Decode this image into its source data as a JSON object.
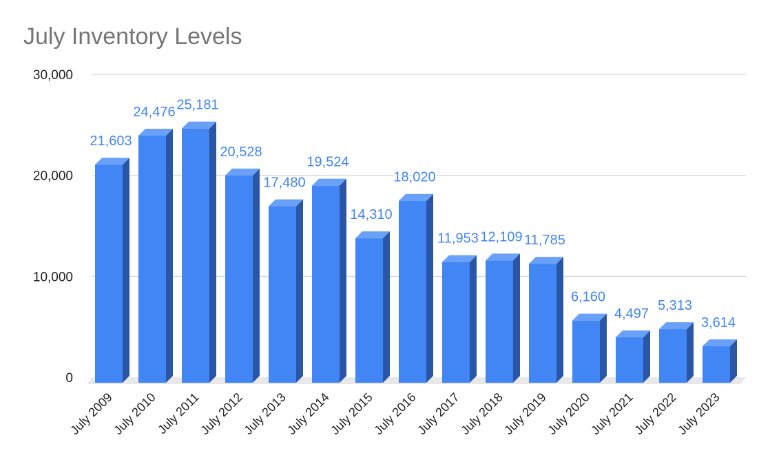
{
  "chart_data": {
    "type": "bar",
    "title": "July Inventory Levels",
    "xlabel": "",
    "ylabel": "",
    "categories": [
      "July 2009",
      "July 2010",
      "July 2011",
      "July 2012",
      "July 2013",
      "July 2014",
      "July 2015",
      "July 2016",
      "July 2017",
      "July 2018",
      "July 2019",
      "July 2020",
      "July 2021",
      "July 2022",
      "July 2023"
    ],
    "values": [
      21603,
      24476,
      25181,
      20528,
      17480,
      19524,
      14310,
      18020,
      11953,
      12109,
      11785,
      6160,
      4497,
      5313,
      3614
    ],
    "data_labels": [
      "21,603",
      "24,476",
      "25,181",
      "20,528",
      "17,480",
      "19,524",
      "14,310",
      "18,020",
      "11,953",
      "12,109",
      "11,785",
      "6,160",
      "4,497",
      "5,313",
      "3,614"
    ],
    "ylim": [
      0,
      30000
    ],
    "yticks": [
      0,
      10000,
      20000,
      30000
    ],
    "ytick_labels": [
      "0",
      "10,000",
      "20,000",
      "30,000"
    ],
    "grid": true,
    "legend": "none",
    "style": "3d-column"
  },
  "colors": {
    "bar_front": "#4285f4",
    "bar_top": "#6aa1f8",
    "bar_side": "#2a56a8",
    "data_label": "#4285f4",
    "gridline": "#cccccc",
    "floor": "#e8e8e8",
    "title": "#757575",
    "axis_text": "#222222"
  }
}
